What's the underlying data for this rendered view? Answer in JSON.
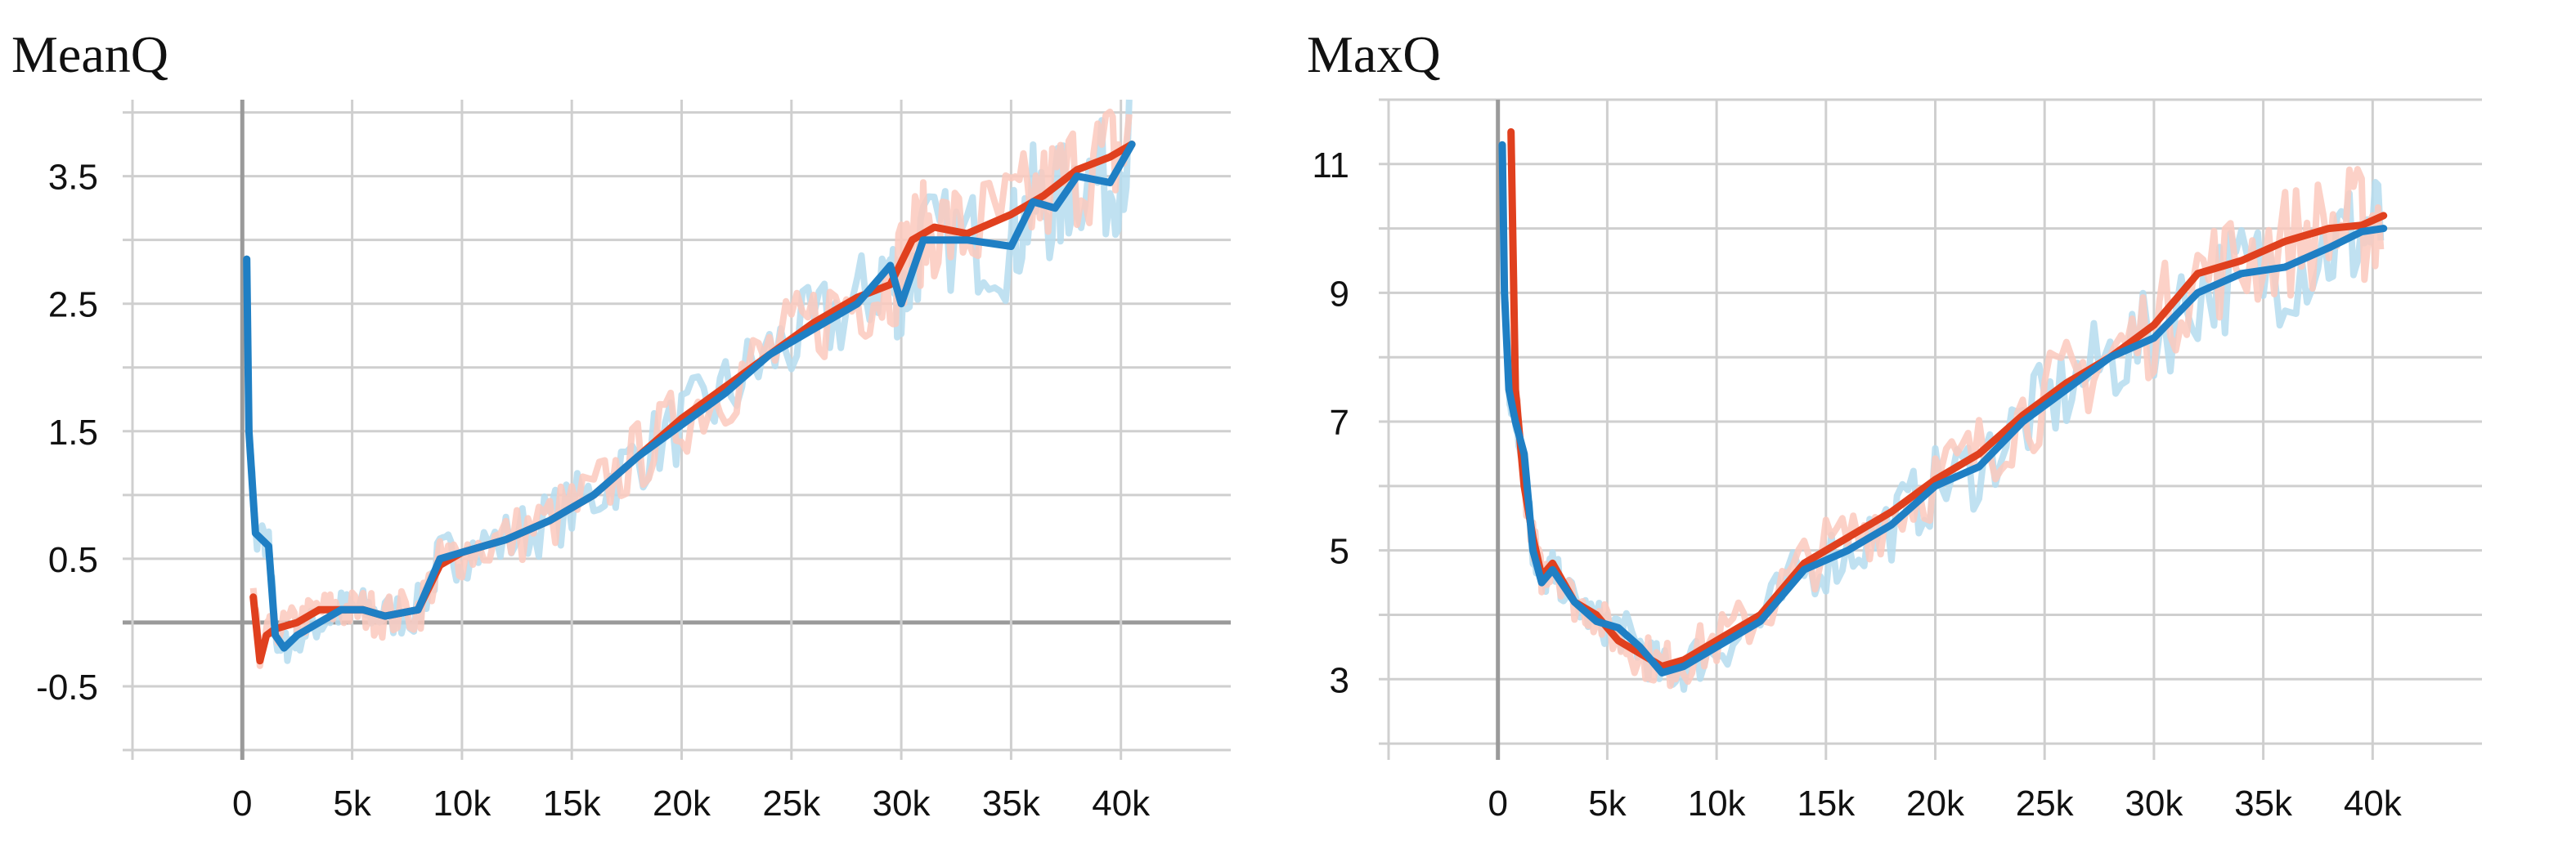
{
  "colors": {
    "blue": "#1f7fc4",
    "red": "#e0401e",
    "light_blue": "#b5dcee",
    "light_red": "#fcc9bd",
    "grid": "#cfcfcf",
    "zero_line": "#9a9a9a"
  },
  "chart_data": [
    {
      "type": "line",
      "title": "MeanQ",
      "xlabel": "",
      "ylabel": "",
      "xlim": [
        -5000,
        45000
      ],
      "ylim": [
        -1.0,
        4.1
      ],
      "x_ticks": [
        0,
        5000,
        10000,
        15000,
        20000,
        25000,
        30000,
        35000,
        40000
      ],
      "x_tick_labels": [
        "0",
        "5k",
        "10k",
        "15k",
        "20k",
        "25k",
        "30k",
        "35k",
        "40k"
      ],
      "y_ticks": [
        -0.5,
        0.5,
        1.5,
        2.5,
        3.5
      ],
      "y_tick_labels": [
        "-0.5",
        "0.5",
        "1.5",
        "2.5",
        "3.5"
      ],
      "y_minor_gridlines": [
        -1.0,
        0.0,
        1.0,
        2.0,
        3.0,
        4.0
      ],
      "series": [
        {
          "name": "run_blue",
          "color": "#1f7fc4",
          "raw_color": "#b5dcee",
          "x": [
            200,
            300,
            600,
            1200,
            1500,
            1900,
            2500,
            3500,
            4500,
            5500,
            6500,
            8000,
            9000,
            10000,
            12000,
            14000,
            16000,
            18000,
            20000,
            22000,
            24000,
            26000,
            28000,
            29500,
            30000,
            31000,
            33000,
            35000,
            36000,
            37000,
            38000,
            39500,
            40500
          ],
          "y": [
            2.85,
            1.5,
            0.7,
            0.6,
            -0.1,
            -0.2,
            -0.1,
            0.0,
            0.1,
            0.1,
            0.05,
            0.1,
            0.5,
            0.55,
            0.65,
            0.8,
            1.0,
            1.3,
            1.55,
            1.8,
            2.1,
            2.3,
            2.5,
            2.8,
            2.5,
            3.0,
            3.0,
            2.95,
            3.3,
            3.25,
            3.5,
            3.45,
            3.75
          ]
        },
        {
          "name": "run_red",
          "color": "#e0401e",
          "raw_color": "#fcc9bd",
          "x": [
            500,
            800,
            1100,
            1500,
            2500,
            3500,
            4500,
            5500,
            6500,
            8000,
            9000,
            10000,
            12000,
            14000,
            16000,
            18000,
            20000,
            22000,
            24000,
            26000,
            28000,
            29500,
            30500,
            31500,
            33000,
            35000,
            36500,
            38000,
            39500,
            40500
          ],
          "y": [
            0.2,
            -0.3,
            -0.1,
            -0.05,
            0.0,
            0.1,
            0.1,
            0.1,
            0.05,
            0.1,
            0.45,
            0.55,
            0.65,
            0.8,
            1.0,
            1.3,
            1.6,
            1.85,
            2.1,
            2.35,
            2.55,
            2.65,
            3.0,
            3.1,
            3.05,
            3.2,
            3.35,
            3.55,
            3.65,
            3.75
          ]
        }
      ]
    },
    {
      "type": "line",
      "title": "MaxQ",
      "xlabel": "",
      "ylabel": "",
      "xlim": [
        -5000,
        45000
      ],
      "ylim": [
        1.9,
        12.0
      ],
      "x_ticks": [
        0,
        5000,
        10000,
        15000,
        20000,
        25000,
        30000,
        35000,
        40000
      ],
      "x_tick_labels": [
        "0",
        "5k",
        "10k",
        "15k",
        "20k",
        "25k",
        "30k",
        "35k",
        "40k"
      ],
      "y_ticks": [
        3,
        5,
        7,
        9,
        11
      ],
      "y_tick_labels": [
        "3",
        "5",
        "7",
        "9",
        "11"
      ],
      "y_minor_gridlines": [
        2,
        4,
        6,
        8,
        10,
        12
      ],
      "series": [
        {
          "name": "run_blue",
          "color": "#1f7fc4",
          "raw_color": "#b5dcee",
          "x": [
            200,
            300,
            500,
            800,
            1200,
            1600,
            2000,
            2500,
            3500,
            4500,
            5500,
            6500,
            7500,
            8500,
            10000,
            12000,
            14000,
            16000,
            18000,
            20000,
            22000,
            24000,
            26000,
            28000,
            30000,
            32000,
            34000,
            36000,
            38000,
            39500,
            40500
          ],
          "y": [
            11.3,
            9.0,
            7.5,
            7.0,
            6.5,
            5.0,
            4.5,
            4.7,
            4.2,
            3.9,
            3.8,
            3.5,
            3.1,
            3.2,
            3.5,
            3.9,
            4.7,
            5.0,
            5.4,
            6.0,
            6.3,
            7.0,
            7.5,
            8.0,
            8.3,
            9.0,
            9.3,
            9.4,
            9.7,
            9.95,
            10.0
          ]
        },
        {
          "name": "run_red",
          "color": "#e0401e",
          "raw_color": "#fcc9bd",
          "x": [
            600,
            800,
            1200,
            1600,
            2000,
            2500,
            3500,
            4500,
            5500,
            6500,
            7500,
            8500,
            10000,
            12000,
            14000,
            16000,
            18000,
            20000,
            22000,
            24000,
            26000,
            28000,
            30000,
            32000,
            34000,
            36000,
            38000,
            39500,
            40500
          ],
          "y": [
            11.5,
            7.5,
            6.0,
            5.2,
            4.6,
            4.8,
            4.2,
            4.0,
            3.6,
            3.4,
            3.2,
            3.3,
            3.6,
            4.0,
            4.8,
            5.2,
            5.6,
            6.1,
            6.5,
            7.1,
            7.6,
            8.0,
            8.5,
            9.3,
            9.5,
            9.8,
            10.0,
            10.05,
            10.2
          ]
        }
      ]
    }
  ]
}
